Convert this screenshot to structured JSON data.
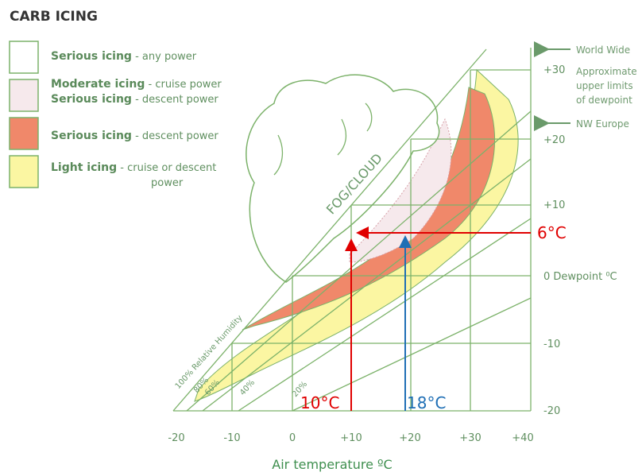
{
  "title": "CARB ICING",
  "legend": [
    {
      "lines": [
        {
          "bold": "Serious icing",
          "rest": " - any power"
        }
      ]
    },
    {
      "lines": [
        {
          "bold": "Moderate icing",
          "rest": " - cruise power"
        },
        {
          "bold": "Serious icing",
          "rest": " - descent power"
        }
      ]
    },
    {
      "lines": [
        {
          "bold": "Serious icing",
          "rest": " - descent power"
        }
      ]
    },
    {
      "lines": [
        {
          "bold": "Light icing",
          "rest": " - cruise or descent"
        },
        {
          "bold": "",
          "rest": "power"
        }
      ]
    }
  ],
  "right_labels": {
    "world_wide": "World Wide",
    "approx": [
      "Approximate",
      "upper limits",
      "of dewpoint"
    ],
    "nw_europe": "NW Europe"
  },
  "y_ticks": [
    "+30",
    "+20",
    "+10",
    "0 Dewpoint ⁰C",
    "-10",
    "-20"
  ],
  "x_ticks": [
    "-20",
    "-10",
    "0",
    "+10",
    "+20",
    "+30",
    "+40"
  ],
  "x_label": "Air temperature ºC",
  "fog_cloud": "FOG/CLOUD",
  "humidity": [
    "100% Relative Humidity",
    "80%",
    "60%",
    "40%",
    "20%"
  ],
  "annotations": {
    "dewpoint": "6°C",
    "temp_a": "10°C",
    "temp_b": "18°C"
  }
}
